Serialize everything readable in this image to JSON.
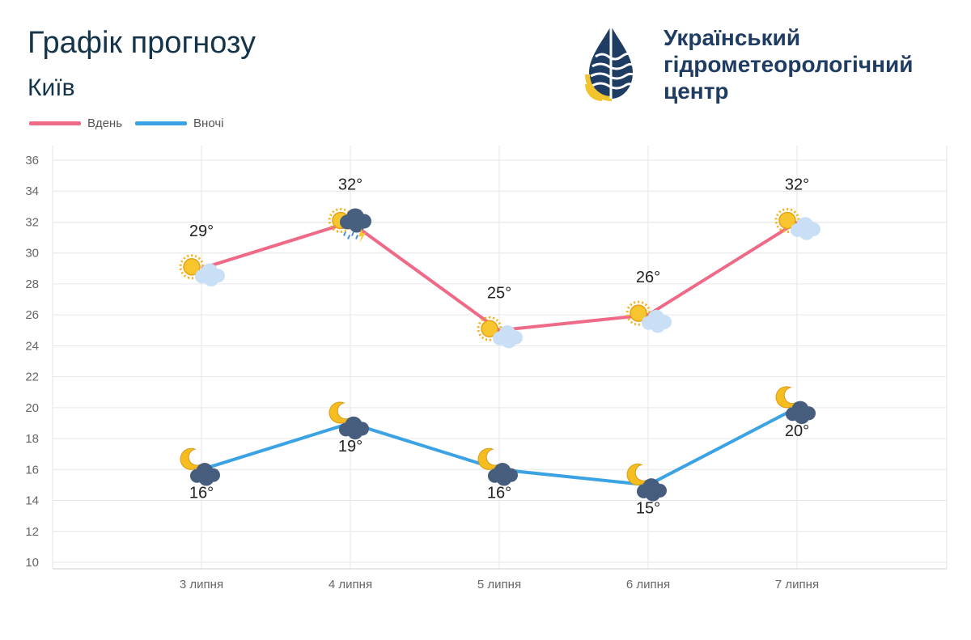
{
  "header": {
    "title": "Графік прогнозу",
    "city": "Київ"
  },
  "logo": {
    "lines": [
      "Український",
      "гідрометеорологічний",
      "центр"
    ],
    "colors": {
      "navy": "#1f3c63",
      "yellow": "#f2c52e"
    }
  },
  "chart_data": {
    "type": "line",
    "categories": [
      "3 липня",
      "4 липня",
      "5 липня",
      "6 липня",
      "7 липня"
    ],
    "series": [
      {
        "name": "Вдень",
        "values": [
          29,
          32,
          25,
          26,
          32
        ],
        "color": "#ef6a87",
        "labels": [
          "29°",
          "32°",
          "25°",
          "26°",
          "32°"
        ],
        "icons": [
          "sun-cloud-icon",
          "sun-thunderstorm-rain-icon",
          "sun-cloud-icon",
          "sun-cloud-icon",
          "sun-cloud-icon"
        ]
      },
      {
        "name": "Вночі",
        "values": [
          16,
          19,
          16,
          15,
          20
        ],
        "color": "#3ba2e4",
        "labels": [
          "16°",
          "19°",
          "16°",
          "15°",
          "20°"
        ],
        "icons": [
          "moon-cloud-icon",
          "moon-cloud-icon",
          "moon-cloud-icon",
          "moon-cloud-icon",
          "moon-cloud-icon"
        ]
      }
    ],
    "yticks": [
      10,
      12,
      14,
      16,
      18,
      20,
      22,
      24,
      26,
      28,
      30,
      32,
      34,
      36
    ],
    "ylim": [
      10,
      36
    ],
    "grid": true,
    "legend": "top-left"
  }
}
